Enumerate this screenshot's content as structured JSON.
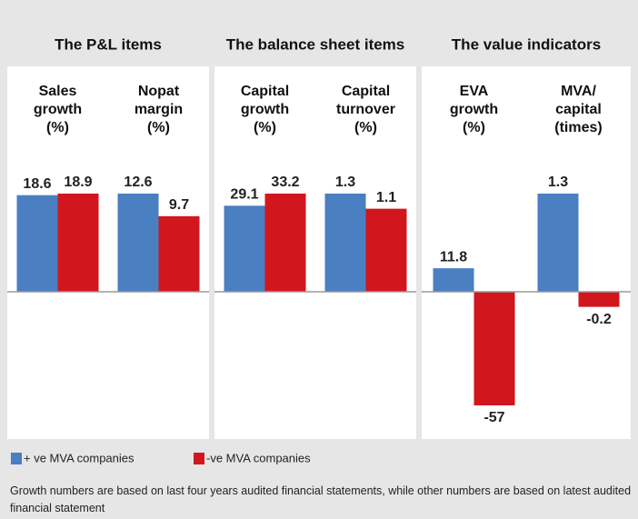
{
  "chart_data": {
    "type": "bar",
    "series": [
      {
        "name": "+ ve MVA companies",
        "color": "#4a7fc1"
      },
      {
        "name": "-ve MVA companies",
        "color": "#d2161e"
      }
    ],
    "groups": [
      {
        "title": "The P&L items",
        "metrics": [
          {
            "label": [
              "Sales",
              "growth",
              "(%)"
            ],
            "values": [
              18.6,
              18.9
            ]
          },
          {
            "label": [
              "Nopat",
              "margin",
              "(%)"
            ],
            "values": [
              12.6,
              9.7
            ]
          }
        ]
      },
      {
        "title": "The balance sheet items",
        "metrics": [
          {
            "label": [
              "Capital",
              "growth",
              "(%)"
            ],
            "values": [
              29.1,
              33.2
            ]
          },
          {
            "label": [
              "Capital",
              "turnover",
              "(%)"
            ],
            "values": [
              1.3,
              1.1
            ]
          }
        ]
      },
      {
        "title": "The value indicators",
        "metrics": [
          {
            "label": [
              "EVA",
              "growth",
              "(%)"
            ],
            "values": [
              11.8,
              -57
            ]
          },
          {
            "label": [
              "MVA/",
              "capital",
              "(times)"
            ],
            "values": [
              1.3,
              -0.2
            ]
          }
        ]
      }
    ],
    "note": "Growth numbers are based on last four years audited financial statements, while other numbers are based on latest audited financial statement"
  }
}
